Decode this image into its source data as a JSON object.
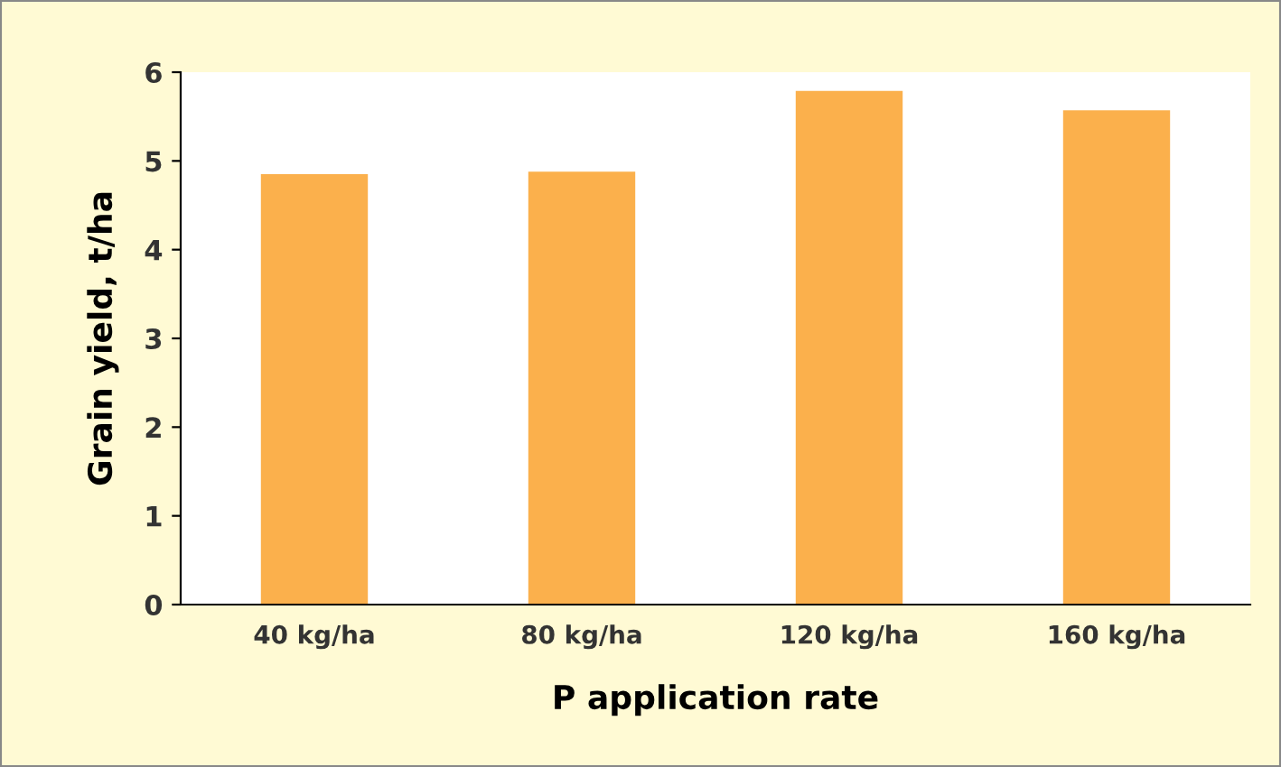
{
  "chart_data": {
    "type": "bar",
    "xlabel": "P application rate",
    "ylabel": "Grain yield, t/ha",
    "categories": [
      "40 kg/ha",
      "80 kg/ha",
      "120 kg/ha",
      "160 kg/ha"
    ],
    "values": [
      4.85,
      4.88,
      5.79,
      5.57
    ],
    "color": "#fbb04c",
    "ylim": [
      0,
      6
    ],
    "yticks": [
      0,
      1,
      2,
      3,
      4,
      5,
      6
    ],
    "grid": false,
    "legend": false
  }
}
